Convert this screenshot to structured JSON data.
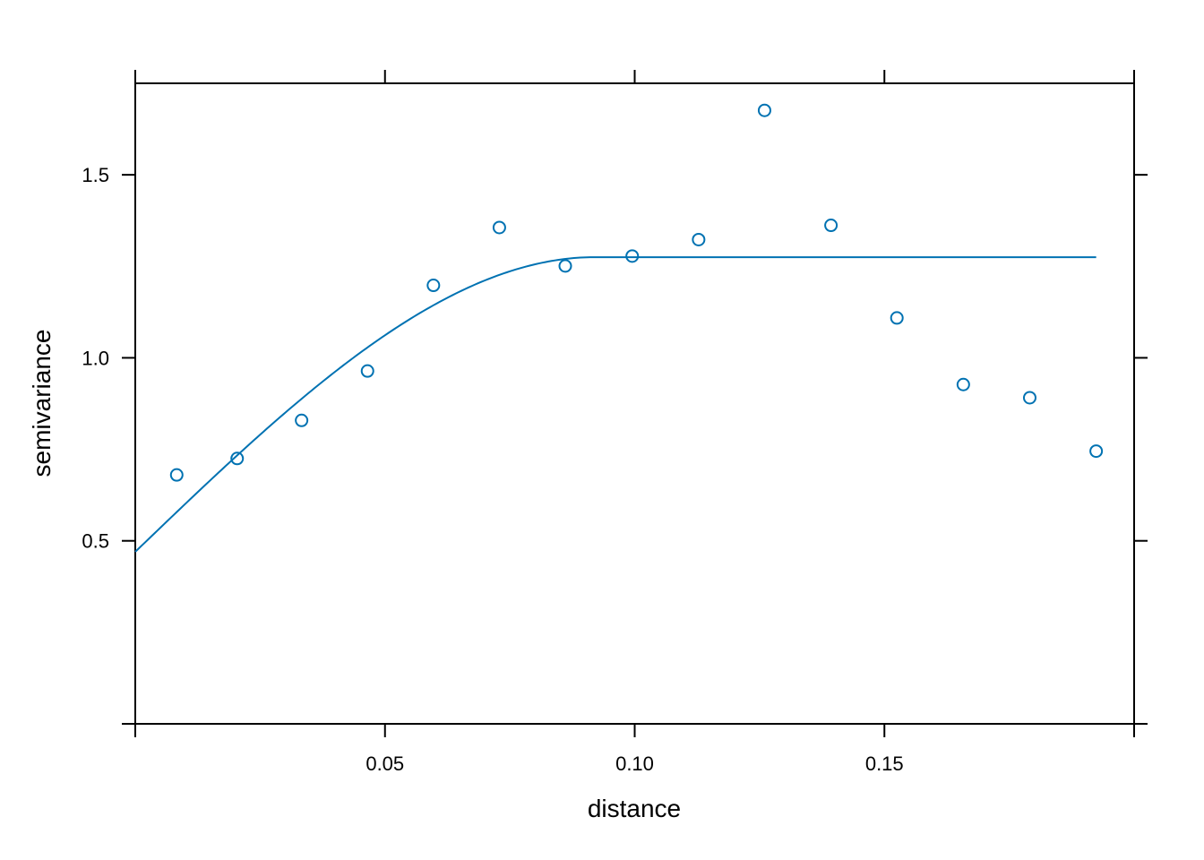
{
  "chart_data": {
    "type": "scatter",
    "xlabel": "distance",
    "ylabel": "semivariance",
    "xlim": [
      0.0,
      0.2
    ],
    "ylim": [
      0.0,
      1.75
    ],
    "x_ticks": [
      0.05,
      0.1,
      0.15
    ],
    "x_tick_labels": [
      "0.05",
      "0.10",
      "0.15"
    ],
    "y_ticks": [
      0.5,
      1.0,
      1.5
    ],
    "y_tick_labels": [
      "0.5",
      "1.0",
      "1.5"
    ],
    "grid": false,
    "color": "#0072B2",
    "series": [
      {
        "kind": "points",
        "x": [
          0.0083,
          0.0204,
          0.0333,
          0.0465,
          0.0597,
          0.0729,
          0.0861,
          0.0995,
          0.1128,
          0.126,
          0.1393,
          0.1525,
          0.1658,
          0.1791,
          0.1924
        ],
        "y": [
          0.68,
          0.725,
          0.829,
          0.964,
          1.198,
          1.356,
          1.251,
          1.278,
          1.323,
          1.676,
          1.362,
          1.109,
          0.927,
          0.891,
          0.745
        ]
      },
      {
        "kind": "fitted_model",
        "model": "spherical",
        "nugget": 0.47,
        "sill": 1.275,
        "range": 0.092,
        "x_max": 0.1924
      }
    ]
  }
}
